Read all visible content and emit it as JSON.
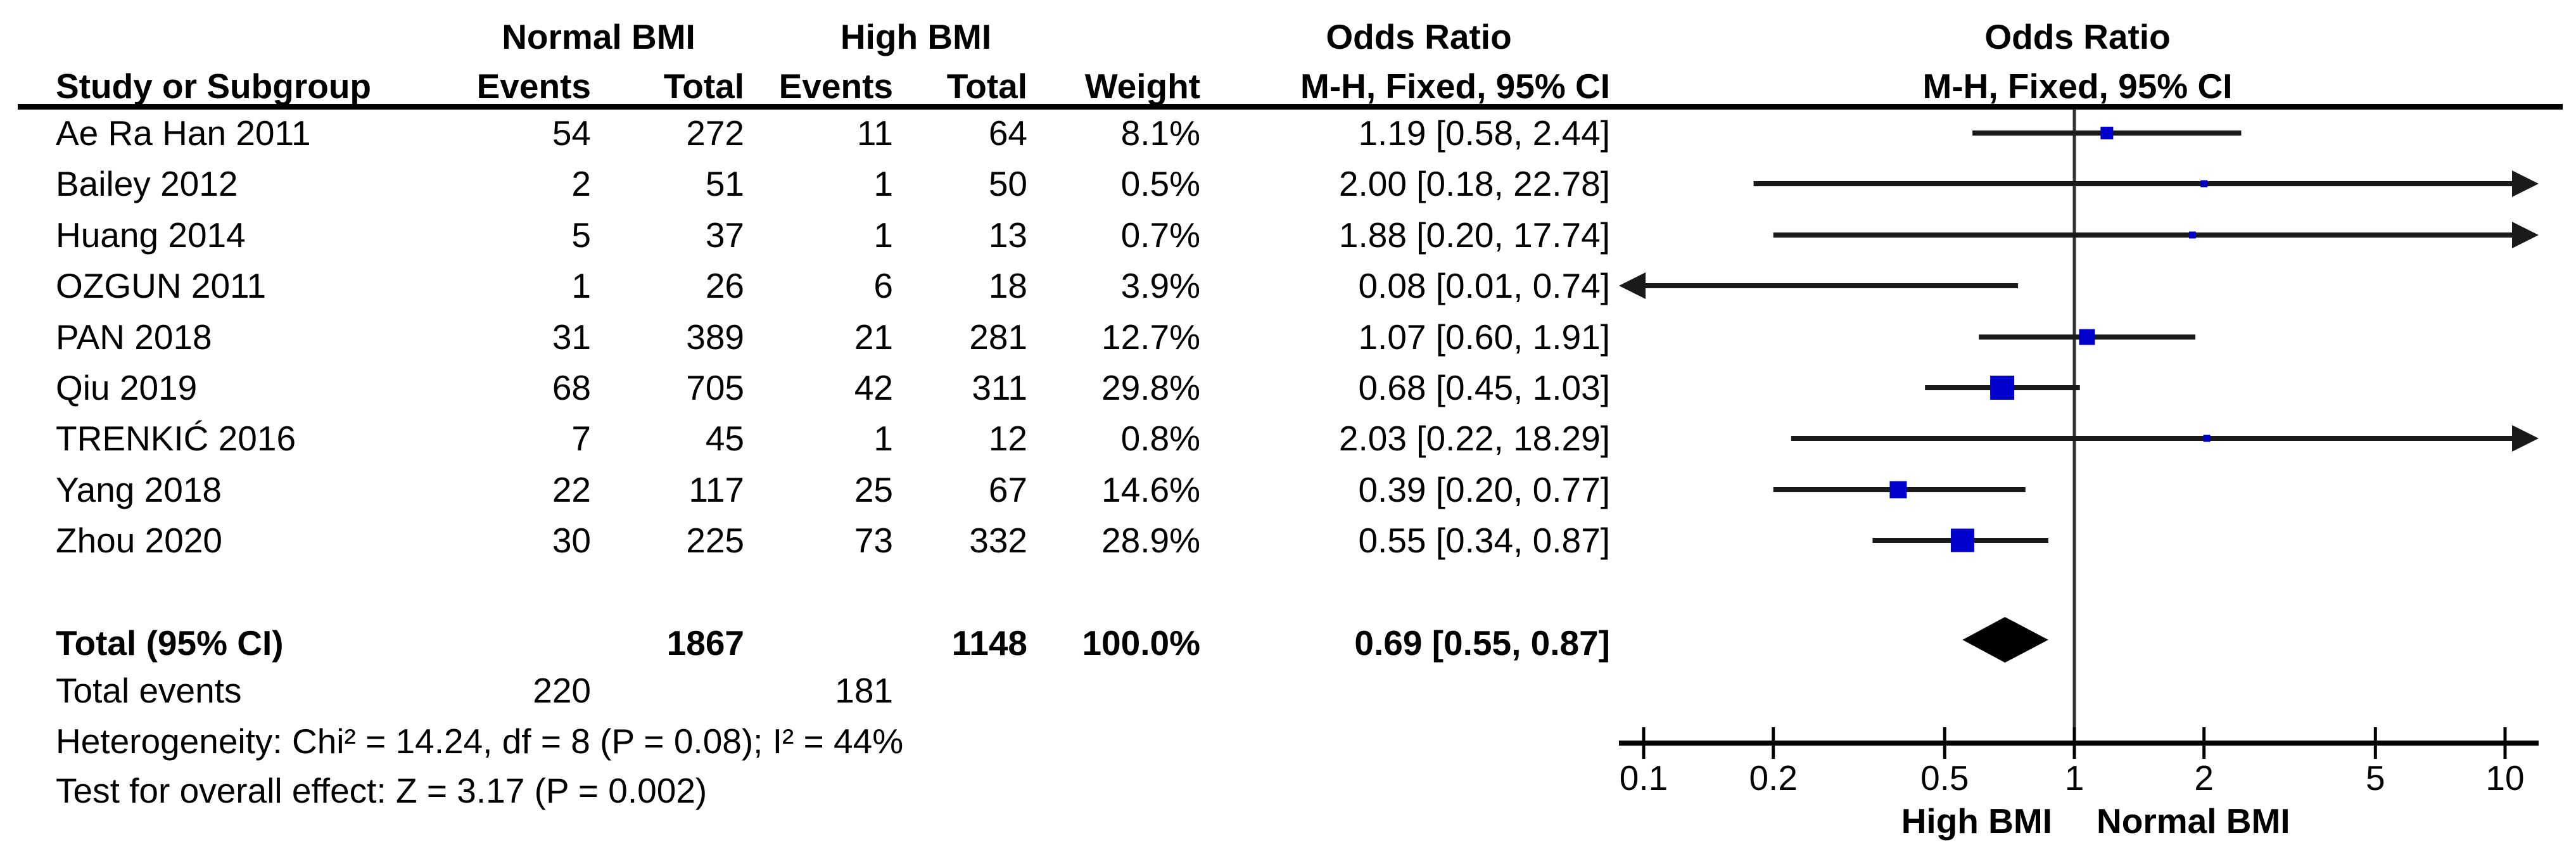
{
  "groups": {
    "group1": "Normal BMI",
    "group2": "High BMI",
    "or_label": "Odds Ratio"
  },
  "columns": {
    "study": "Study or Subgroup",
    "events": "Events",
    "total": "Total",
    "weight": "Weight",
    "mh_ci": "M-H, Fixed, 95% CI"
  },
  "chart_data": {
    "type": "forest",
    "effect_measure": "Odds Ratio",
    "method": "M-H, Fixed, 95% CI",
    "x_axis": {
      "scale": "log",
      "min": 0.1,
      "max": 10,
      "ticks": [
        0.1,
        0.2,
        0.5,
        1,
        2,
        5,
        10
      ],
      "tick_labels": [
        "0.1",
        "0.2",
        "0.5",
        "1",
        "2",
        "5",
        "10"
      ],
      "left_label": "High BMI",
      "right_label": "Normal BMI"
    },
    "studies": [
      {
        "name": "Ae Ra Han 2011",
        "normal_events": 54,
        "normal_total": 272,
        "high_events": 11,
        "high_total": 64,
        "weight": "8.1%",
        "weight_pct": 8.1,
        "or": 1.19,
        "ci_low": 0.58,
        "ci_high": 2.44,
        "or_text": "1.19 [0.58, 2.44]"
      },
      {
        "name": "Bailey 2012",
        "normal_events": 2,
        "normal_total": 51,
        "high_events": 1,
        "high_total": 50,
        "weight": "0.5%",
        "weight_pct": 0.5,
        "or": 2.0,
        "ci_low": 0.18,
        "ci_high": 22.78,
        "or_text": "2.00 [0.18, 22.78]"
      },
      {
        "name": "Huang 2014",
        "normal_events": 5,
        "normal_total": 37,
        "high_events": 1,
        "high_total": 13,
        "weight": "0.7%",
        "weight_pct": 0.7,
        "or": 1.88,
        "ci_low": 0.2,
        "ci_high": 17.74,
        "or_text": "1.88 [0.20, 17.74]"
      },
      {
        "name": "OZGUN 2011",
        "normal_events": 1,
        "normal_total": 26,
        "high_events": 6,
        "high_total": 18,
        "weight": "3.9%",
        "weight_pct": 3.9,
        "or": 0.08,
        "ci_low": 0.01,
        "ci_high": 0.74,
        "or_text": "0.08 [0.01, 0.74]"
      },
      {
        "name": "PAN 2018",
        "normal_events": 31,
        "normal_total": 389,
        "high_events": 21,
        "high_total": 281,
        "weight": "12.7%",
        "weight_pct": 12.7,
        "or": 1.07,
        "ci_low": 0.6,
        "ci_high": 1.91,
        "or_text": "1.07 [0.60, 1.91]"
      },
      {
        "name": "Qiu 2019",
        "normal_events": 68,
        "normal_total": 705,
        "high_events": 42,
        "high_total": 311,
        "weight": "29.8%",
        "weight_pct": 29.8,
        "or": 0.68,
        "ci_low": 0.45,
        "ci_high": 1.03,
        "or_text": "0.68 [0.45, 1.03]"
      },
      {
        "name": "TRENKIĆ 2016",
        "normal_events": 7,
        "normal_total": 45,
        "high_events": 1,
        "high_total": 12,
        "weight": "0.8%",
        "weight_pct": 0.8,
        "or": 2.03,
        "ci_low": 0.22,
        "ci_high": 18.29,
        "or_text": "2.03 [0.22, 18.29]"
      },
      {
        "name": "Yang 2018",
        "normal_events": 22,
        "normal_total": 117,
        "high_events": 25,
        "high_total": 67,
        "weight": "14.6%",
        "weight_pct": 14.6,
        "or": 0.39,
        "ci_low": 0.2,
        "ci_high": 0.77,
        "or_text": "0.39 [0.20, 0.77]"
      },
      {
        "name": "Zhou 2020",
        "normal_events": 30,
        "normal_total": 225,
        "high_events": 73,
        "high_total": 332,
        "weight": "28.9%",
        "weight_pct": 28.9,
        "or": 0.55,
        "ci_low": 0.34,
        "ci_high": 0.87,
        "or_text": "0.55 [0.34, 0.87]"
      }
    ],
    "total": {
      "label": "Total (95% CI)",
      "normal_total": 1867,
      "high_total": 1148,
      "weight": "100.0%",
      "or": 0.69,
      "ci_low": 0.55,
      "ci_high": 0.87,
      "or_text": "0.69 [0.55, 0.87]"
    },
    "total_events": {
      "label": "Total events",
      "normal": 220,
      "high": 181
    },
    "heterogeneity": "Heterogeneity: Chi² = 14.24, df = 8 (P = 0.08); I² = 44%",
    "overall_effect": "Test for overall effect: Z = 3.17 (P = 0.002)",
    "colors": {
      "square": "#0000CD",
      "line": "#1a1a1a",
      "diamond": "#000000",
      "axis": "#000000",
      "center_line": "#333333",
      "text": "#000000"
    }
  }
}
